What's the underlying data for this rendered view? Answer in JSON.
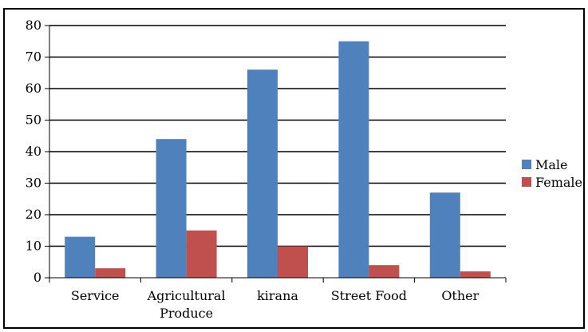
{
  "chart_data": {
    "type": "bar",
    "categories": [
      [
        "Service"
      ],
      [
        "Agricultural",
        "Produce"
      ],
      [
        "kirana"
      ],
      [
        "Street Food"
      ],
      [
        "Other"
      ]
    ],
    "series": [
      {
        "name": "Male",
        "color": "#4f81bd",
        "values": [
          13,
          44,
          66,
          75,
          27
        ]
      },
      {
        "name": "Female",
        "color": "#c0504d",
        "values": [
          3,
          15,
          10,
          4,
          2
        ]
      }
    ],
    "yticks": [
      "0",
      "10",
      "20",
      "30",
      "40",
      "50",
      "60",
      "70",
      "80"
    ],
    "ylim": [
      0,
      80
    ],
    "grid": true,
    "legend_position": "right"
  }
}
